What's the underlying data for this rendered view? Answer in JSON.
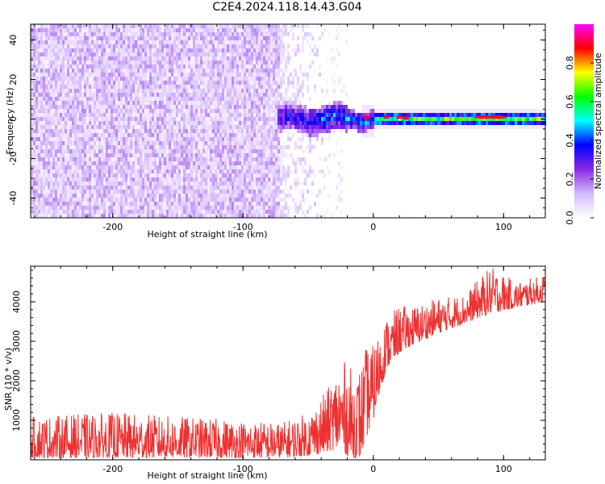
{
  "title": "C2E4.2024.118.14.43.G04",
  "chart_data": [
    {
      "type": "heatmap",
      "xlabel": "Height of straight line (km)",
      "ylabel": "Frequency (Hz)",
      "xlim": [
        -263,
        132
      ],
      "ylim": [
        -50,
        48
      ],
      "xticks": [
        -200,
        -100,
        0,
        100
      ],
      "yticks": [
        -40,
        -20,
        0,
        20,
        40
      ],
      "colorbar": {
        "label": "Normalized spectral amplitude",
        "range": [
          0.0,
          1.0
        ],
        "ticks": [
          0.0,
          0.2,
          0.4,
          0.6,
          0.8
        ],
        "colors": [
          "#ffffff",
          "#d4b8ff",
          "#8a2be2",
          "#0000ff",
          "#00ffff",
          "#00ff00",
          "#ffff00",
          "#ff0000",
          "#ff00ff"
        ]
      },
      "regions": [
        {
          "x_range": [
            -263,
            -70
          ],
          "description_value": "noise",
          "amplitude_range": [
            0.02,
            0.15
          ]
        },
        {
          "x_range": [
            -70,
            -40
          ],
          "amplitude_range": [
            0.0,
            0.08
          ]
        },
        {
          "x_range": [
            -75,
            0
          ],
          "freq_range": [
            -8,
            8
          ],
          "amplitude_range": [
            0.1,
            0.5
          ]
        },
        {
          "x_range": [
            0,
            132
          ],
          "freq_range": [
            -2,
            3
          ],
          "amplitude_range": [
            0.3,
            0.95
          ]
        }
      ]
    },
    {
      "type": "line",
      "xlabel": "Height of straight line (km)",
      "ylabel": "SNR (10 * v/v)",
      "xlim": [
        -263,
        132
      ],
      "ylim": [
        0,
        4900
      ],
      "xticks": [
        -200,
        -100,
        0,
        100
      ],
      "yticks": [
        1000,
        2000,
        3000,
        4000
      ],
      "series_color": "#ee3030",
      "trend": {
        "x": [
          -263,
          -200,
          -150,
          -100,
          -70,
          -50,
          -35,
          -25,
          -20,
          -15,
          -10,
          -5,
          0,
          5,
          10,
          20,
          30,
          50,
          70,
          90,
          110,
          132
        ],
        "y_low": [
          50,
          50,
          50,
          50,
          50,
          100,
          200,
          300,
          100,
          50,
          50,
          600,
          1000,
          1700,
          2300,
          2700,
          2900,
          3200,
          3450,
          3700,
          3850,
          4000
        ],
        "y_high": [
          1100,
          1200,
          1100,
          1000,
          950,
          1200,
          1800,
          2500,
          2500,
          2200,
          2400,
          2900,
          2900,
          3300,
          3600,
          3900,
          3900,
          4100,
          4200,
          4900,
          4500,
          4700
        ]
      }
    }
  ]
}
